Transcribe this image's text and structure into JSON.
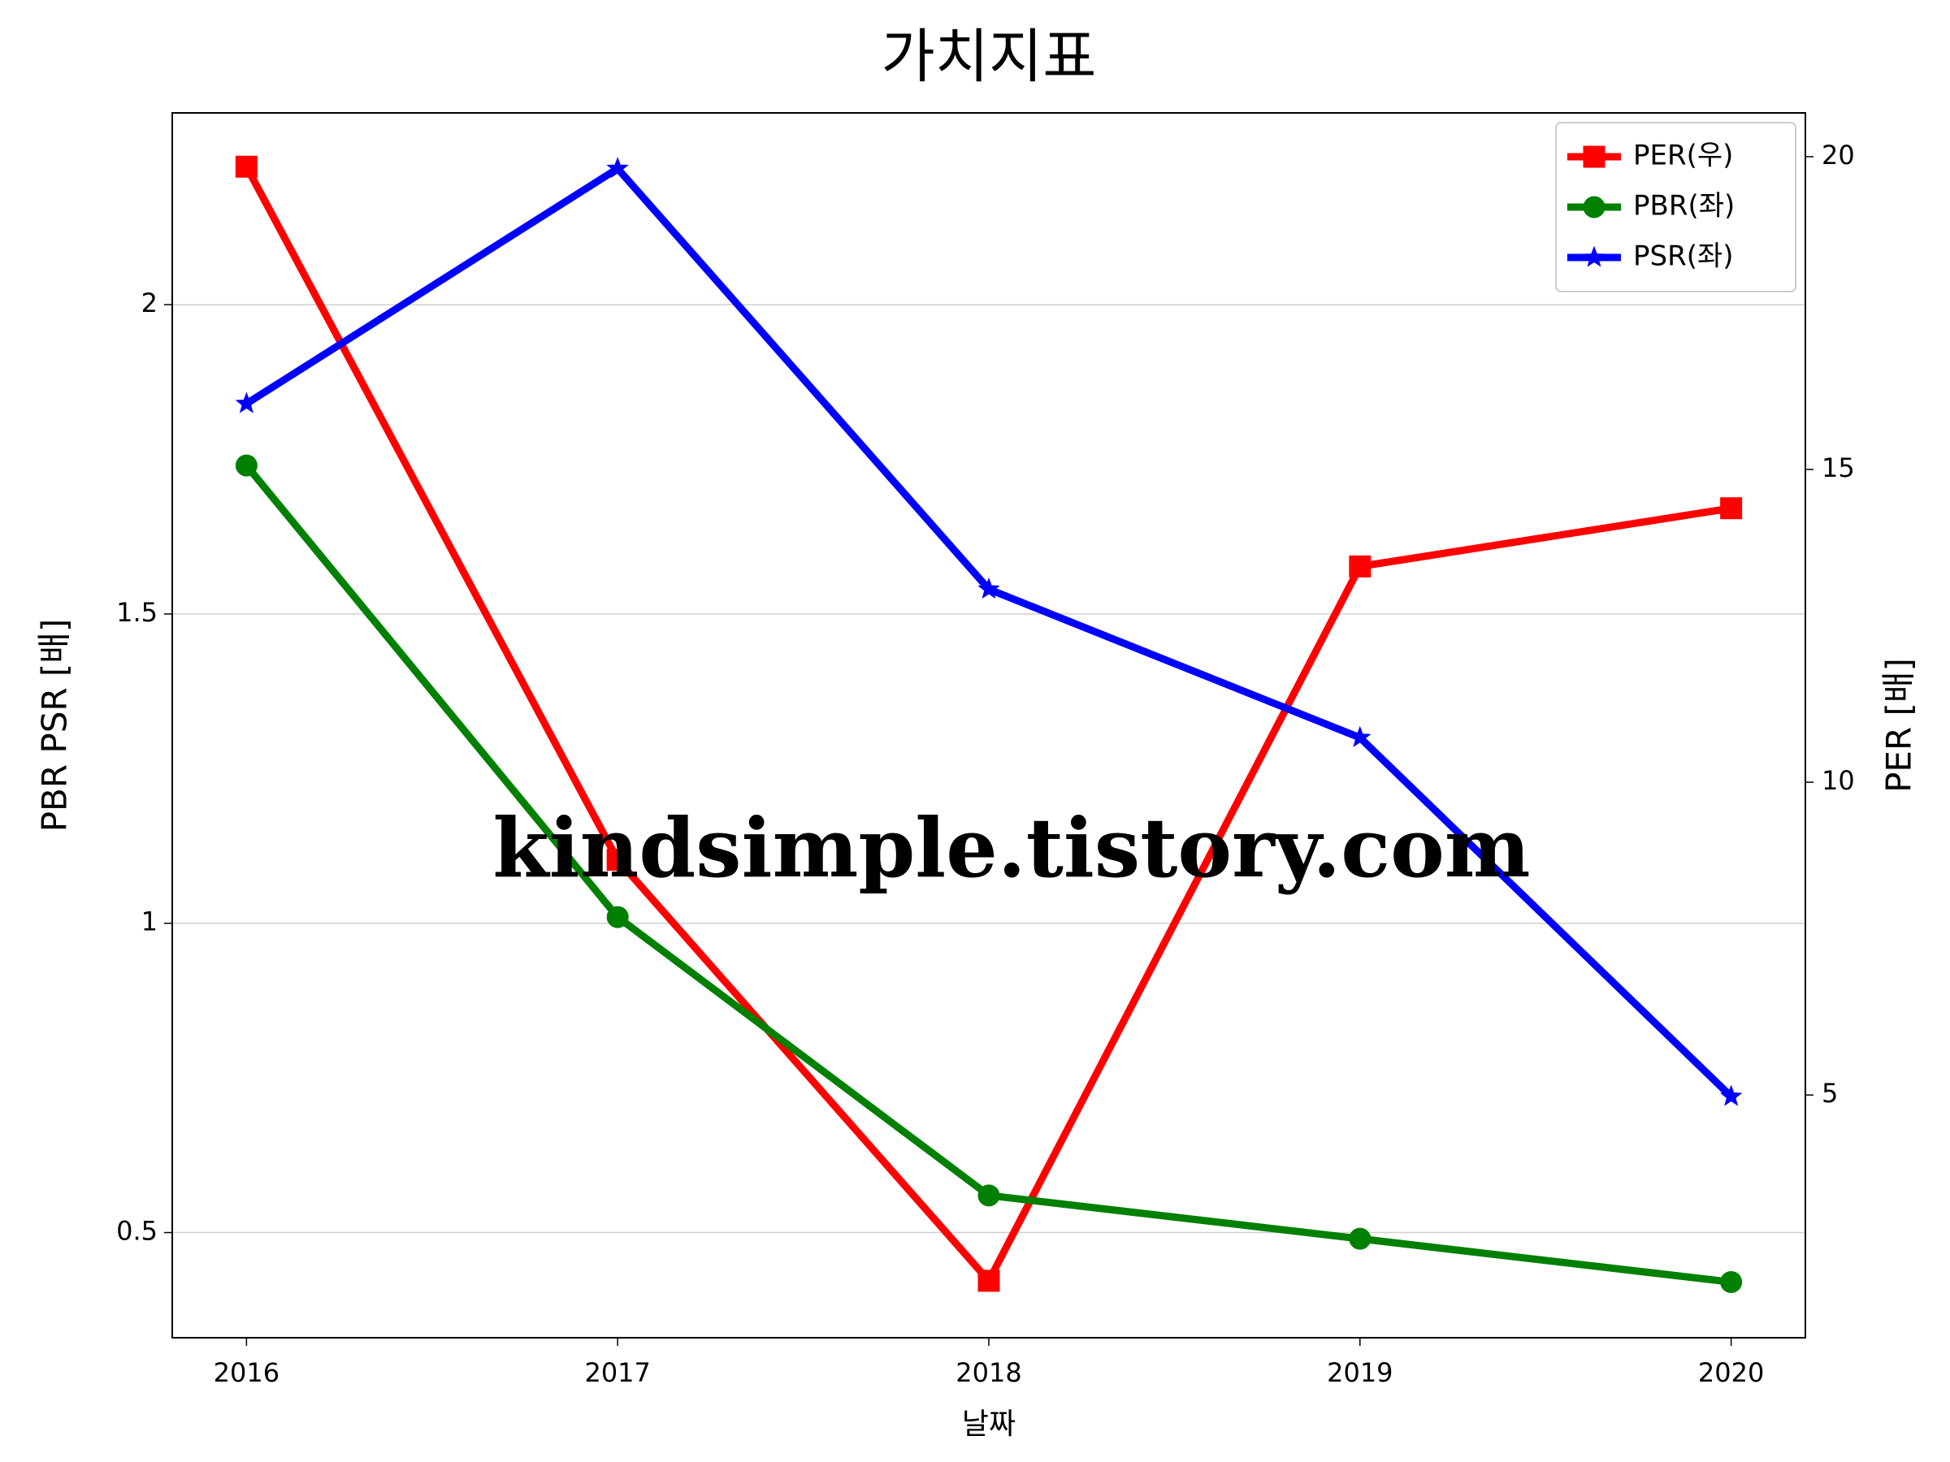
{
  "chart_data": {
    "type": "line",
    "title": "가치지표",
    "xlabel": "날짜",
    "ylabel": "PBR PSR [배]",
    "ylabel_color": "#008000",
    "y2label": "PER [배]",
    "y2label_color": "#ff0000",
    "annotation": "kindsimple.tistory.com",
    "annotation_color": "#e2a6ee",
    "x": [
      2016,
      2017,
      2018,
      2019,
      2020
    ],
    "xlim": [
      2015.8,
      2020.2
    ],
    "xticks": [
      2016,
      2017,
      2018,
      2019,
      2020
    ],
    "ylim": [
      0.33,
      2.31
    ],
    "yticks": [
      0.5,
      1.0,
      1.5,
      2.0
    ],
    "y2lim": [
      1.12,
      20.7
    ],
    "y2ticks": [
      5,
      10,
      15,
      20
    ],
    "grid": true,
    "legend": "upper right",
    "series": [
      {
        "name": "PER(우)",
        "color": "#ff0000",
        "marker": "square",
        "axis": "y2",
        "values": [
          19.84,
          8.76,
          2.03,
          13.45,
          14.38
        ]
      },
      {
        "name": "PBR(좌)",
        "color": "#008000",
        "marker": "circle",
        "values": [
          1.74,
          1.01,
          0.56,
          0.49,
          0.42
        ]
      },
      {
        "name": "PSR(좌)",
        "color": "#0000ff",
        "marker": "star",
        "values": [
          1.84,
          2.22,
          1.54,
          1.3,
          0.72
        ]
      }
    ]
  }
}
